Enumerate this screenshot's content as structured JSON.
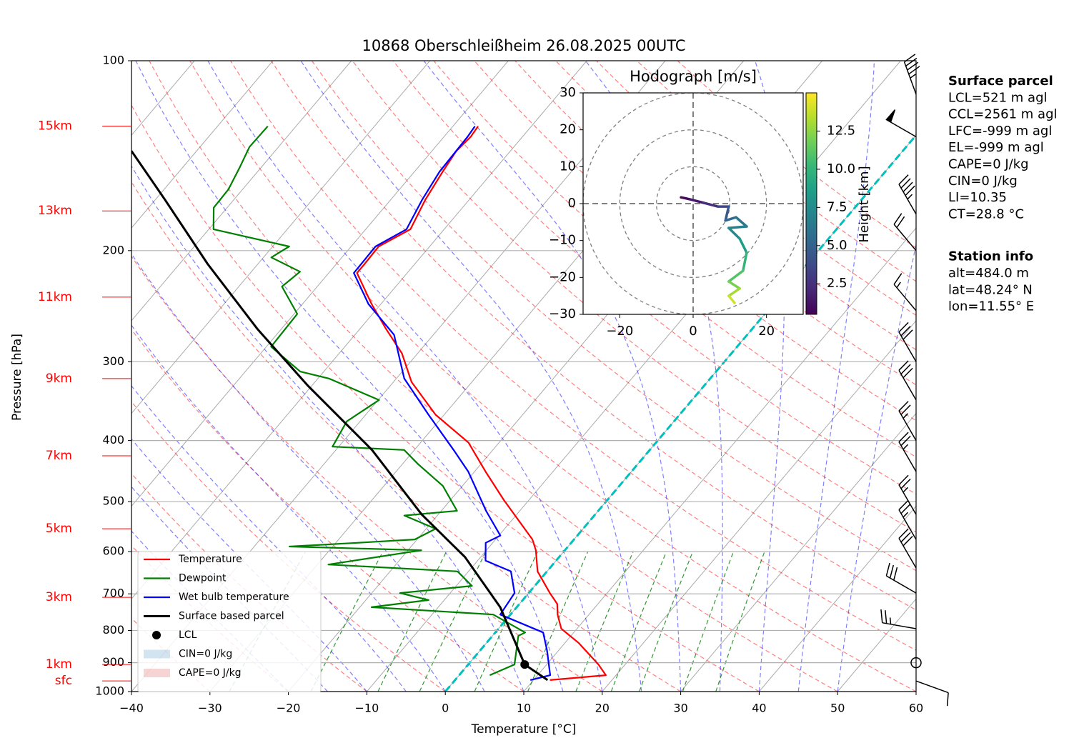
{
  "chart_data": [
    {
      "type": "skewt",
      "title": "10868 Oberschleißheim 26.08.2025 00UTC",
      "x_label": "Temperature [°C]",
      "y_label": "Pressure [hPa]",
      "xlim": [
        -40,
        60
      ],
      "ylim": [
        1000,
        100
      ],
      "yscale": "log",
      "grid": true,
      "legend": "lower left",
      "xticks": [
        {
          "value": -40,
          "label": "−40"
        },
        {
          "value": -30,
          "label": "−30"
        },
        {
          "value": -20,
          "label": "−20"
        },
        {
          "value": -10,
          "label": "−10"
        },
        0,
        10,
        20,
        30,
        40,
        50,
        60
      ],
      "yticks": [
        100,
        200,
        300,
        400,
        500,
        600,
        700,
        800,
        900,
        1000
      ],
      "heights": [
        {
          "label": "15km",
          "pressure": 127
        },
        {
          "label": "13km",
          "pressure": 173
        },
        {
          "label": "11km",
          "pressure": 237
        },
        {
          "label": "9km",
          "pressure": 319
        },
        {
          "label": "7km",
          "pressure": 423
        },
        {
          "label": "5km",
          "pressure": 552
        },
        {
          "label": "3km",
          "pressure": 709
        },
        {
          "label": "1km",
          "pressure": 906
        },
        {
          "label": "sfc",
          "pressure": 962
        }
      ],
      "heights_color": "#ff0000",
      "series": [
        {
          "name": "Temperature",
          "color": "#ff0000",
          "pressure": [
            959,
            942,
            906,
            838,
            795,
            755,
            726,
            698,
            645,
            597,
            574,
            497,
            448,
            403,
            364,
            323,
            291,
            266,
            243,
            217,
            210,
            197,
            185,
            166,
            150,
            139,
            132,
            127
          ],
          "temperature": [
            12.1,
            18.7,
            16.6,
            11.8,
            8.0,
            6.0,
            4.8,
            2.7,
            -1.2,
            -3.7,
            -5.3,
            -13.2,
            -18.6,
            -23.9,
            -31.1,
            -37.7,
            -42.0,
            -46.7,
            -51.2,
            -56.4,
            -56.4,
            -56.5,
            -54.3,
            -55.6,
            -56.4,
            -56.9,
            -56.6,
            -56.8
          ]
        },
        {
          "name": "Dewpoint",
          "color": "#008000",
          "pressure": [
            942,
            906,
            816,
            806,
            755,
            735,
            716,
            698,
            680,
            645,
            629,
            597,
            589,
            581,
            574,
            552,
            526,
            517,
            472,
            436,
            414,
            409,
            373,
            345,
            319,
            311,
            284,
            252,
            228,
            216,
            205,
            197,
            185,
            171,
            160,
            148,
            137,
            127
          ],
          "temperature": [
            3.9,
            5.9,
            3.3,
            3.8,
            -2.2,
            -18.5,
            -12,
            -16.4,
            -8,
            -11.4,
            -28.6,
            -18.3,
            -35.5,
            -27.3,
            -20.3,
            -18.8,
            -24.2,
            -18,
            -22.5,
            -28,
            -31.3,
            -40.8,
            -41.7,
            -39.9,
            -48.6,
            -53,
            -59.4,
            -59.6,
            -64.5,
            -63.8,
            -69,
            -67.9,
            -79.4,
            -81.7,
            -81.8,
            -82.7,
            -83.7,
            -83.6
          ]
        },
        {
          "name": "Wet bulb temperature",
          "color": "#0000ff",
          "pressure": [
            959,
            942,
            860,
            806,
            755,
            698,
            645,
            620,
            581,
            566,
            517,
            448,
            414,
            364,
            319,
            272,
            243,
            217,
            197,
            185,
            166,
            150,
            132,
            127
          ],
          "temperature": [
            9.6,
            11.6,
            8.5,
            6.1,
            -1.3,
            -1.8,
            -4.6,
            -9,
            -10.9,
            -9.8,
            -14.3,
            -20.8,
            -25,
            -32,
            -39,
            -45,
            -51.6,
            -56.8,
            -56.9,
            -54.8,
            -56,
            -56.8,
            -57,
            -57.2
          ]
        },
        {
          "name": "Surface based parcel",
          "color": "#000000",
          "pressure": [
            959,
            906,
            735,
            612,
            524,
            414,
            327,
            266,
            210,
            166,
            139
          ],
          "temperature": [
            11.8,
            7.2,
            -2.1,
            -12,
            -22.1,
            -35.4,
            -50.6,
            -63.1,
            -76.4,
            -88.8,
            -98.3
          ]
        }
      ],
      "lcl": {
        "name": "LCL",
        "pressure": 906,
        "temperature": 7.2,
        "color": "#000000"
      },
      "shading": [
        {
          "name": "CIN=0 J/kg",
          "color": "#1f77b4"
        },
        {
          "name": "CAPE=0 J/kg",
          "color": "#d62728"
        }
      ],
      "wind": {
        "pressure": [
          113,
          132,
          175,
          200,
          249,
          300,
          345,
          400,
          448,
          524,
          574,
          637,
          698,
          795,
          900,
          962
        ],
        "direction": [
          340,
          300,
          330,
          320,
          320,
          330,
          330,
          330,
          330,
          330,
          330,
          330,
          300,
          280,
          0,
          110
        ],
        "speed": [
          45,
          50,
          45,
          20,
          15,
          30,
          30,
          25,
          25,
          25,
          25,
          30,
          30,
          25,
          0,
          10
        ]
      },
      "info": [
        {
          "title": "Surface parcel",
          "lines": [
            "LCL=521 m agl",
            "CCL=2561 m agl",
            "LFC=-999 m agl",
            "EL=-999 m agl",
            "CAPE=0 J/kg",
            "CIN=0 J/kg",
            "LI=10.35",
            "CT=28.8 °C"
          ]
        },
        {
          "title": "Station info",
          "lines": [
            "alt=484.0 m",
            "lat=48.24° N",
            "lon=11.55° E"
          ]
        }
      ]
    },
    {
      "type": "hodograph",
      "title": "Hodograph [m/s]",
      "xlim": [
        -30,
        30
      ],
      "ylim": [
        -30,
        30
      ],
      "xticks": [
        {
          "value": -20,
          "label": "−20"
        },
        0,
        20
      ],
      "yticks": [
        {
          "value": -30,
          "label": "−30"
        },
        {
          "value": -20,
          "label": "−20"
        },
        {
          "value": -10,
          "label": "−10"
        },
        0,
        10,
        20,
        30
      ],
      "rings": [
        10,
        20,
        30
      ],
      "u": [
        -3.3,
        -1,
        2.9,
        6.8,
        9.7,
        8.8,
        11.7,
        14.6,
        9.7,
        12.7,
        14.6,
        13.6,
        9.7,
        12.7,
        9.7,
        11.3
      ],
      "v": [
        1.7,
        1.2,
        0.2,
        -0.8,
        -0.8,
        -4.6,
        -3.7,
        -6.2,
        -6.6,
        -9.5,
        -13.3,
        -18.2,
        -21.1,
        -23,
        -25,
        -26.9
      ],
      "height": [
        0.3,
        0.8,
        1.5,
        2.5,
        3.5,
        4.5,
        5.5,
        6.2,
        6.8,
        7.5,
        8.5,
        10,
        11,
        12,
        13,
        14
      ],
      "colorbar": {
        "label": "Height [km]",
        "colormap": "viridis",
        "lim": [
          0.5,
          15
        ],
        "ticks": [
          2.5,
          {
            "value": 5,
            "label": "5.0"
          },
          7.5,
          {
            "value": 10,
            "label": "10.0"
          },
          12.5
        ]
      }
    }
  ]
}
